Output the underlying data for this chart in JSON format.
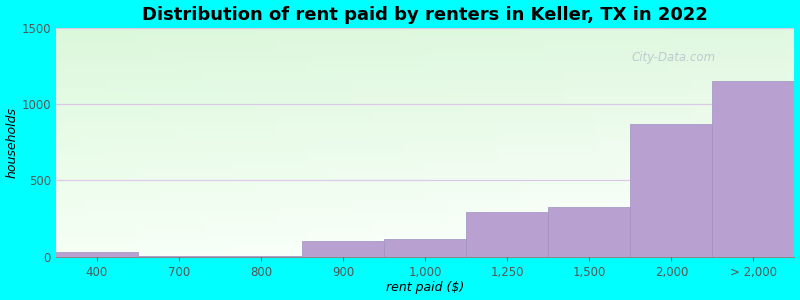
{
  "title": "Distribution of rent paid by renters in Keller, TX in 2022",
  "xlabel": "rent paid ($)",
  "ylabel": "households",
  "background_color": "#00FFFF",
  "bar_color": "#b8a0d0",
  "bar_edge_color": "#a090c0",
  "ylim": [
    0,
    1500
  ],
  "yticks": [
    0,
    500,
    1000,
    1500
  ],
  "categories": [
    "400",
    "700",
    "800",
    "900",
    "1,000",
    "1,250",
    "1,500",
    "2,000",
    "> 2,000"
  ],
  "values": [
    30,
    5,
    5,
    105,
    115,
    295,
    325,
    870,
    1150
  ],
  "grid_color": "#ddc8e8",
  "title_fontsize": 13,
  "label_fontsize": 9,
  "tick_fontsize": 8.5,
  "watermark": "City-Data.com"
}
